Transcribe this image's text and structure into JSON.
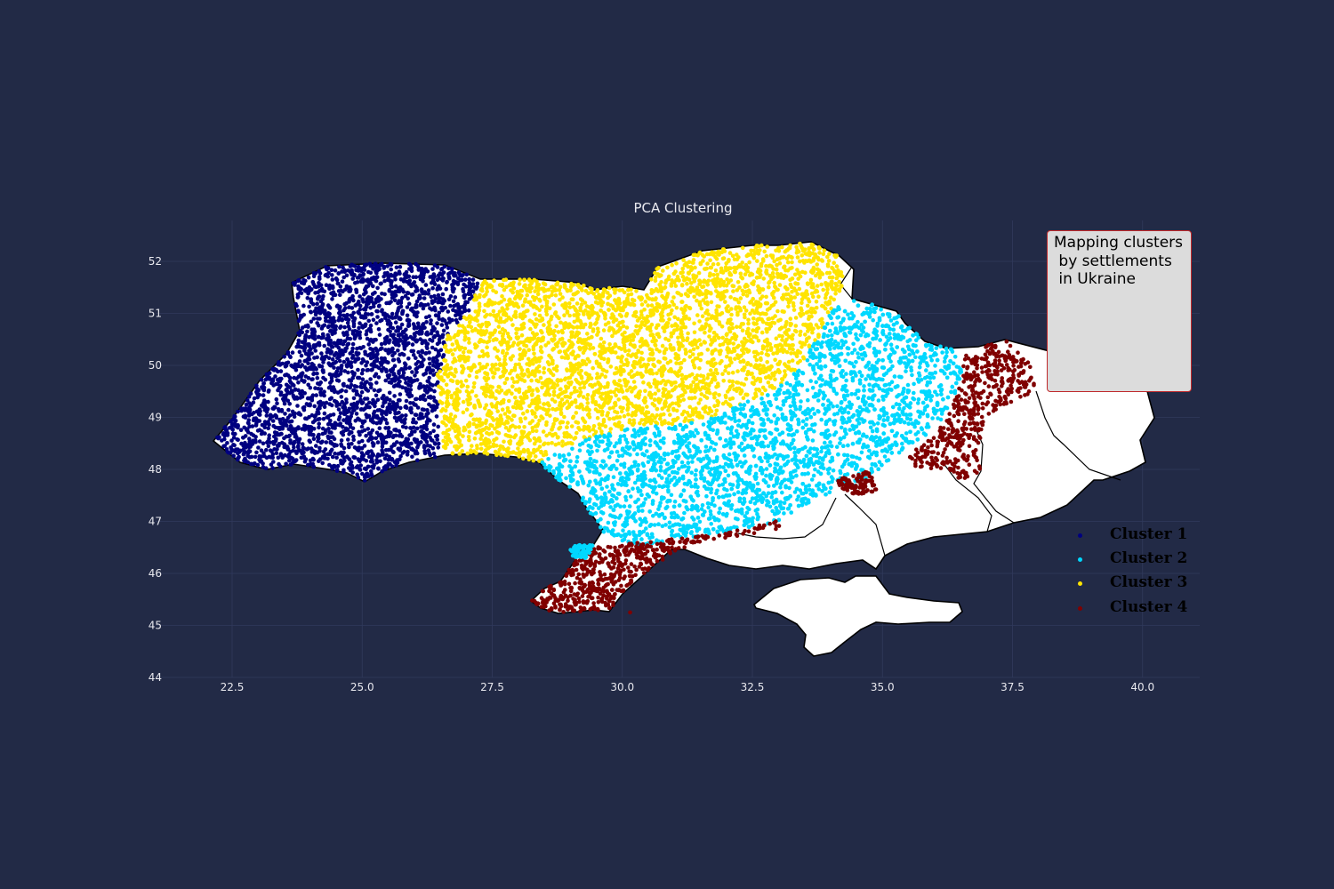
{
  "title": "PCA Clustering",
  "colors": {
    "background": "#222a46",
    "grid": "#313a5c",
    "text": "#e8e8ee",
    "land": "#ffffff",
    "border": "#000000",
    "legend_bg": "#dcdcdc",
    "legend_edge": "#c0292b"
  },
  "legend": {
    "title": "Mapping clusters\n by settlements\n in Ukraine",
    "items": [
      {
        "label": "Cluster 1",
        "color": "#000080"
      },
      {
        "label": "Cluster 2",
        "color": "#00d8ff"
      },
      {
        "label": "Cluster 3",
        "color": "#ffe400"
      },
      {
        "label": "Cluster 4",
        "color": "#800000"
      }
    ]
  },
  "chart_data": {
    "type": "scatter",
    "title": "PCA Clustering",
    "xlabel": "",
    "ylabel": "",
    "xlim": [
      21.3,
      41.2
    ],
    "ylim": [
      44,
      52.8
    ],
    "xticks": [
      "22.5",
      "25.0",
      "27.5",
      "30.0",
      "32.5",
      "35.0",
      "37.5",
      "40.0"
    ],
    "yticks": [
      "44",
      "45",
      "46",
      "47",
      "48",
      "49",
      "50",
      "51",
      "52"
    ],
    "grid": true,
    "legend_position": "top-right",
    "basemap": "Ukraine oblast boundaries",
    "series": [
      {
        "name": "Cluster 1",
        "color": "#000080",
        "region": "western Ukraine",
        "approx_extent": {
          "lon": [
            22.2,
            26.6
          ],
          "lat": [
            47.8,
            51.95
          ]
        }
      },
      {
        "name": "Cluster 2",
        "color": "#00d8ff",
        "region": "central-southern and eastern-central Ukraine",
        "approx_extent": {
          "lon": [
            28.3,
            36.6
          ],
          "lat": [
            46.3,
            51.8
          ]
        }
      },
      {
        "name": "Cluster 3",
        "color": "#ffe400",
        "region": "north-central Ukraine",
        "approx_extent": {
          "lon": [
            26.5,
            34.3
          ],
          "lat": [
            48.1,
            52.35
          ]
        }
      },
      {
        "name": "Cluster 4",
        "color": "#800000",
        "region": "southern coast and eastern border",
        "approx_extent": {
          "lon": [
            28.5,
            38.0
          ],
          "lat": [
            45.2,
            50.45
          ]
        }
      }
    ]
  }
}
